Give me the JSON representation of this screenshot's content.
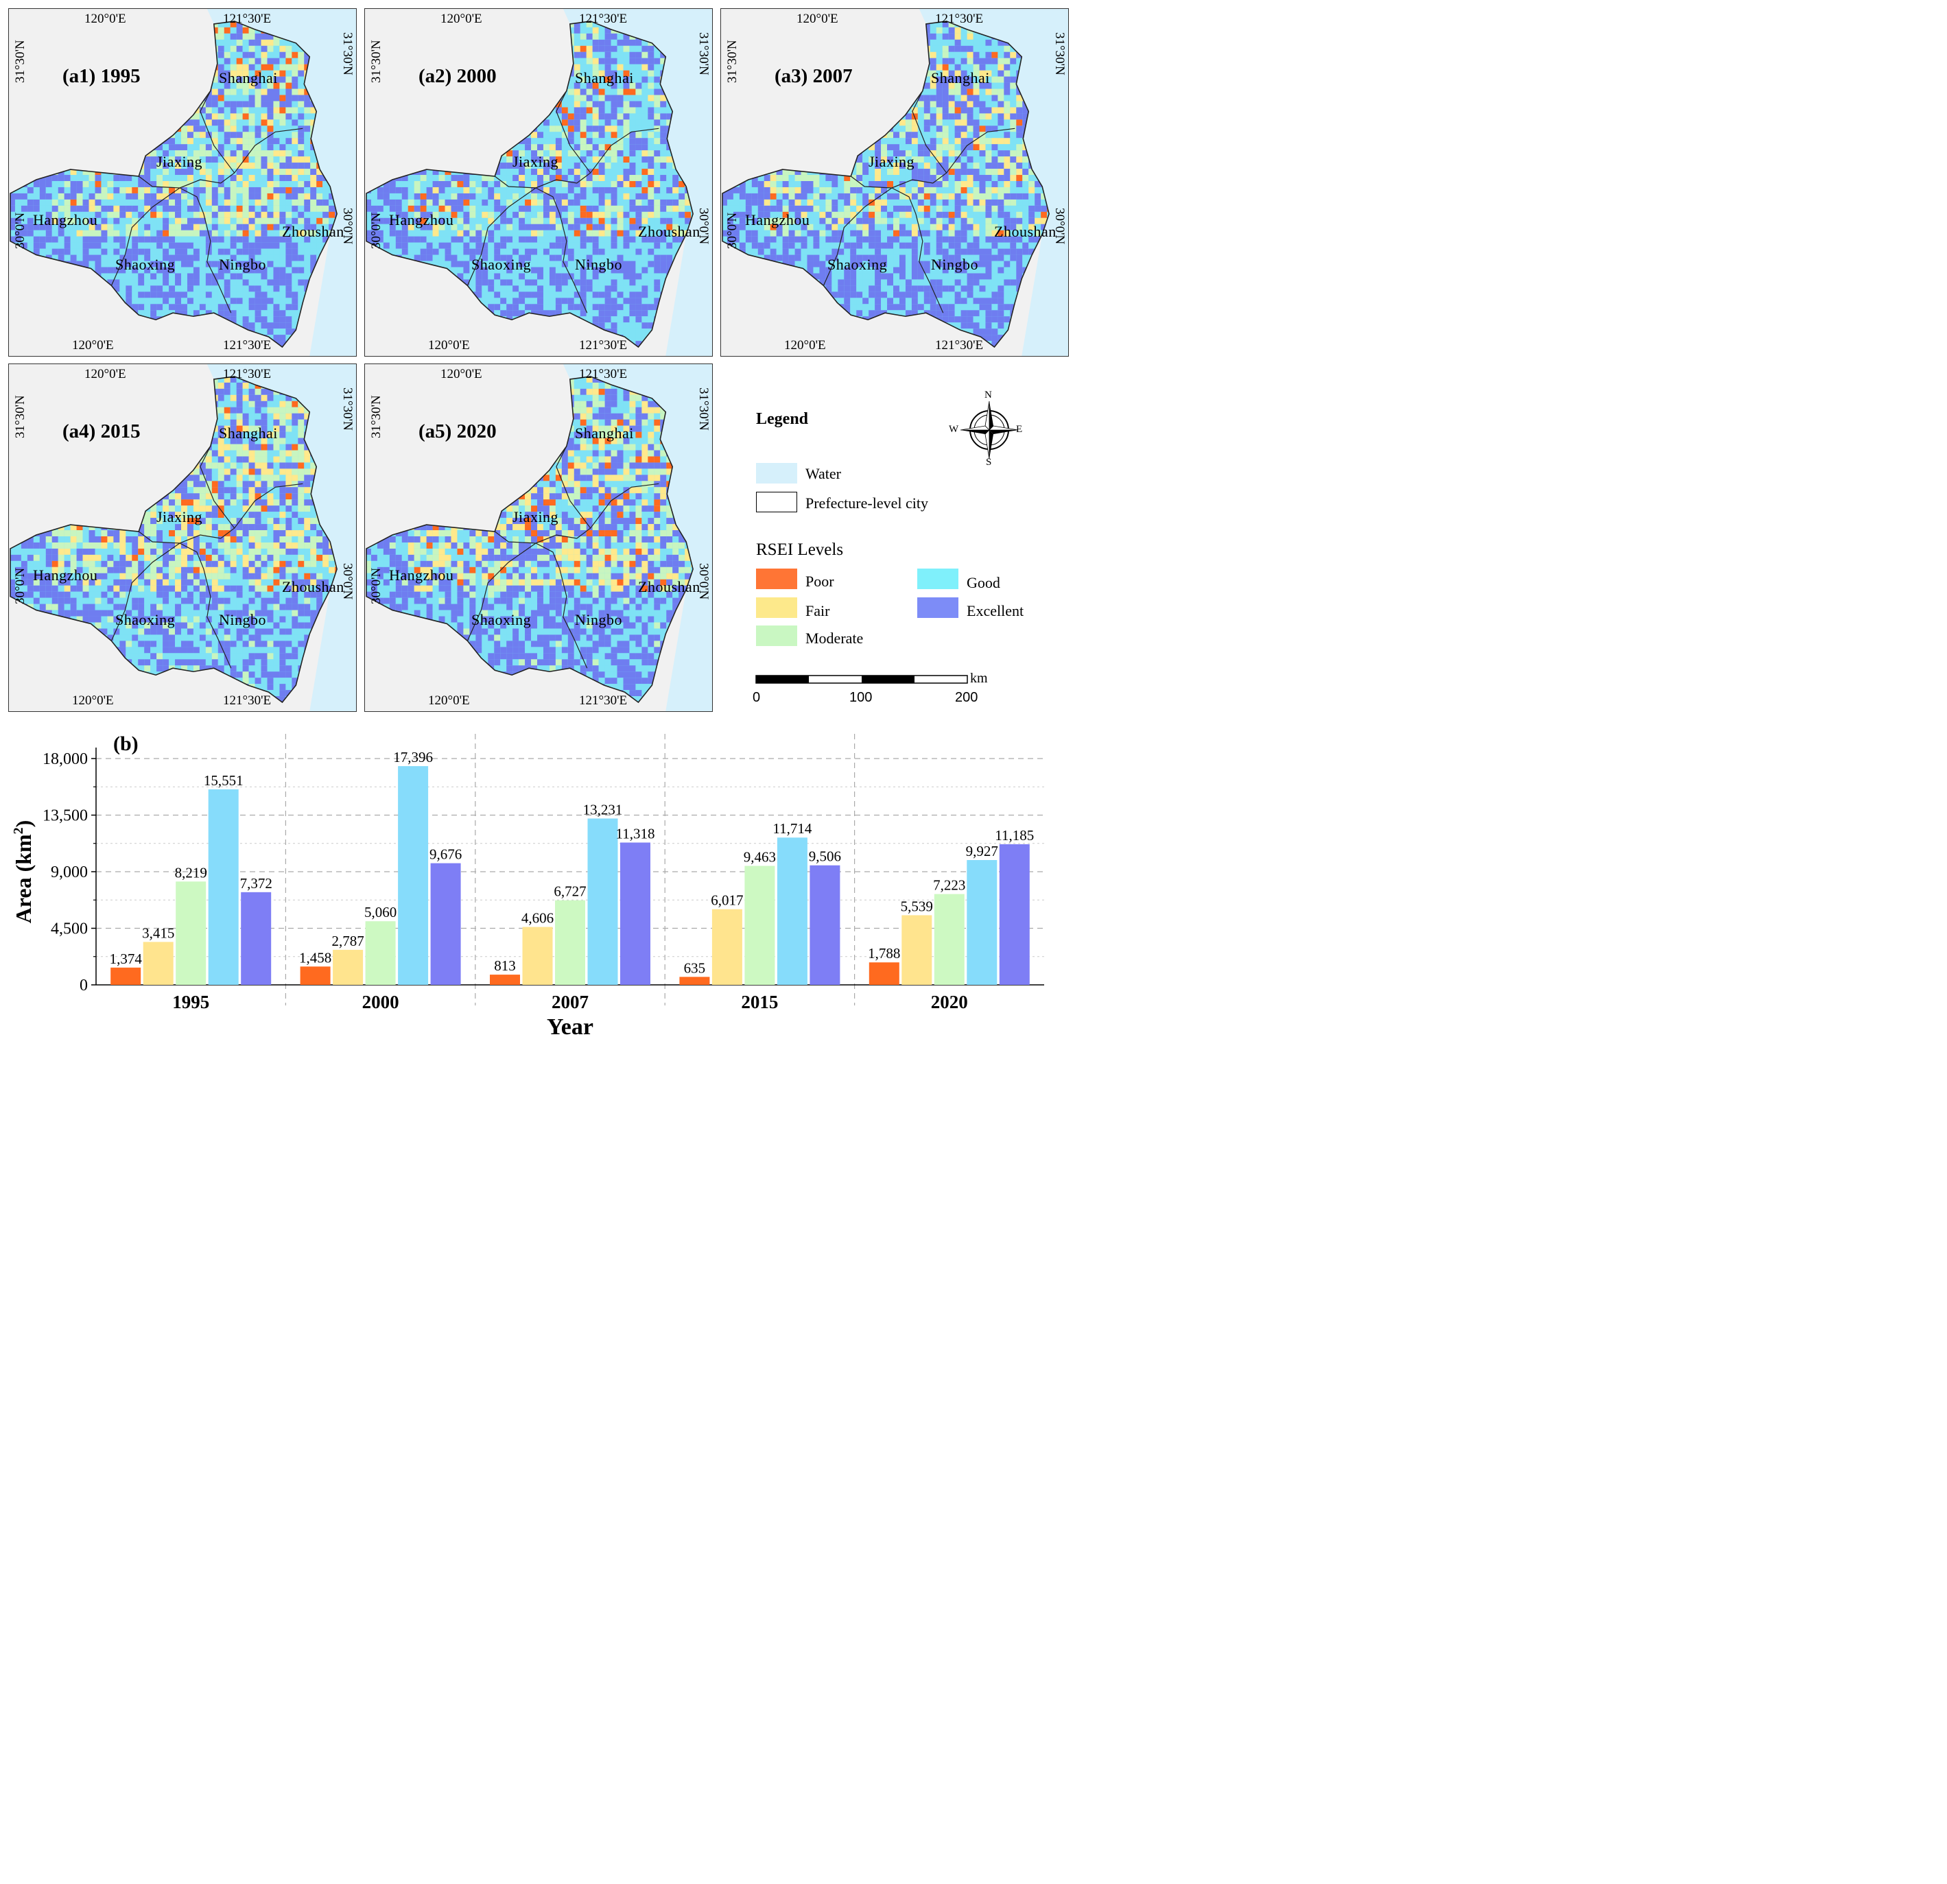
{
  "maps": [
    {
      "title": "(a1) 1995",
      "palette": [
        "#ff6a1f",
        "#ffe98c",
        "#c8f5c0",
        "#7fe2f5",
        "#6f7df0"
      ],
      "weights": [
        0.05,
        0.1,
        0.25,
        0.3,
        0.3
      ]
    },
    {
      "title": "(a2) 2000",
      "palette": [
        "#ff6a1f",
        "#ffe98c",
        "#c8f5c0",
        "#7fe2f5",
        "#6f7df0"
      ],
      "weights": [
        0.05,
        0.08,
        0.15,
        0.42,
        0.3
      ]
    },
    {
      "title": "(a3) 2007",
      "palette": [
        "#ff6a1f",
        "#ffe98c",
        "#c8f5c0",
        "#7fe2f5",
        "#6f7df0"
      ],
      "weights": [
        0.03,
        0.12,
        0.2,
        0.32,
        0.33
      ]
    },
    {
      "title": "(a4) 2015",
      "palette": [
        "#ff6a1f",
        "#ffe98c",
        "#c8f5c0",
        "#7fe2f5",
        "#6f7df0"
      ],
      "weights": [
        0.03,
        0.17,
        0.25,
        0.28,
        0.27
      ]
    },
    {
      "title": "(a5) 2020",
      "palette": [
        "#ff6a1f",
        "#ffe98c",
        "#c8f5c0",
        "#7fe2f5",
        "#6f7df0"
      ],
      "weights": [
        0.06,
        0.17,
        0.2,
        0.25,
        0.32
      ]
    }
  ],
  "map_labels": {
    "lon_left": "120°0'E",
    "lon_right": "121°30'E",
    "lat_top": "31°30'N",
    "lat_mid": "30°0'N",
    "cities": [
      "Shanghai",
      "Jiaxing",
      "Hangzhou",
      "Shaoxing",
      "Ningbo",
      "Zhoushan"
    ]
  },
  "legend": {
    "title": "Legend",
    "water": "Water",
    "prefecture": "Prefecture-level city",
    "rsei_title": "RSEI  Levels",
    "levels": [
      {
        "label": "Poor",
        "color": "#ff7535"
      },
      {
        "label": "Fair",
        "color": "#fde98b"
      },
      {
        "label": "Moderate",
        "color": "#c9f7c2"
      },
      {
        "label": "Good",
        "color": "#7ff0fb"
      },
      {
        "label": "Excellent",
        "color": "#7d8cf7"
      }
    ],
    "water_color": "#d6f0fb",
    "compass": {
      "n": "N",
      "s": "S",
      "e": "E",
      "w": "W"
    },
    "scale": {
      "unit": "km",
      "ticks": [
        "0",
        "100",
        "200"
      ]
    }
  },
  "chart_data": {
    "type": "bar",
    "panel_label": "(b)",
    "categories": [
      "1995",
      "2000",
      "2007",
      "2015",
      "2020"
    ],
    "series": [
      {
        "name": "Poor",
        "color": "#ff6a1f",
        "values": [
          1374,
          1458,
          813,
          635,
          1788
        ],
        "labels": [
          "1,374",
          "1,458",
          "813",
          "635",
          "1,788"
        ]
      },
      {
        "name": "Fair",
        "color": "#ffe48e",
        "values": [
          3415,
          2787,
          4606,
          6017,
          5539
        ],
        "labels": [
          "3,415",
          "2,787",
          "4,606",
          "6,017",
          "5,539"
        ]
      },
      {
        "name": "Moderate",
        "color": "#cdf9c2",
        "values": [
          8219,
          5060,
          6727,
          9463,
          7223
        ],
        "labels": [
          "8,219",
          "5,060",
          "6,727",
          "9,463",
          "7,223"
        ]
      },
      {
        "name": "Good",
        "color": "#86dcfb",
        "values": [
          15551,
          17396,
          13231,
          11714,
          9927
        ],
        "labels": [
          "15,551",
          "17,396",
          "13,231",
          "11,714",
          "9,927"
        ]
      },
      {
        "name": "Excellent",
        "color": "#7e7ef5",
        "values": [
          7372,
          9676,
          11318,
          9506,
          11185
        ],
        "labels": [
          "7,372",
          "9,676",
          "11,318",
          "9,506",
          "11,185"
        ]
      }
    ],
    "xlabel": "Year",
    "ylabel": "Area (km",
    "ylabel_sup": "2",
    "ylabel_end": ")",
    "ylim": [
      0,
      18000
    ],
    "yticks": [
      0,
      4500,
      9000,
      13500,
      18000
    ],
    "ytick_labels": [
      "0",
      "4,500",
      "9,000",
      "13,500",
      "18,000"
    ]
  }
}
